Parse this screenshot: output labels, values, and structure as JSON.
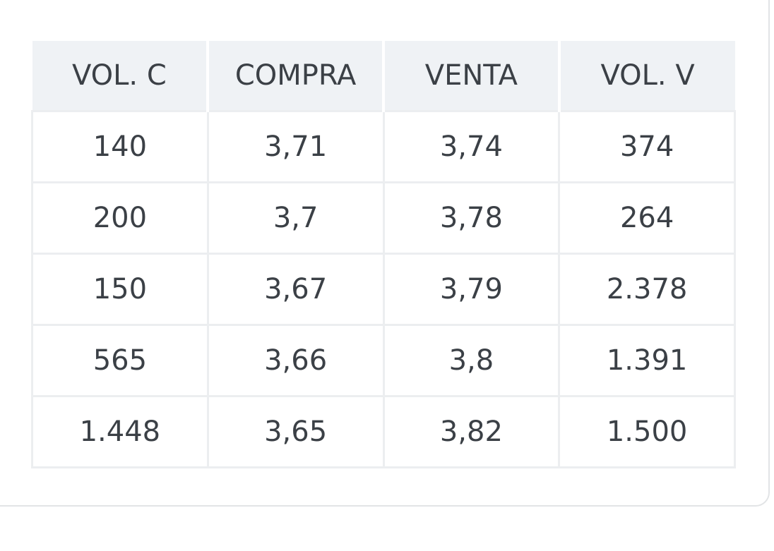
{
  "table": {
    "header": [
      "VOL. C",
      "COMPRA",
      "VENTA",
      "VOL. V"
    ],
    "rows": [
      [
        "140",
        "3,71",
        "3,74",
        "374"
      ],
      [
        "200",
        "3,7",
        "3,78",
        "264"
      ],
      [
        "150",
        "3,67",
        "3,79",
        "2.378"
      ],
      [
        "565",
        "3,66",
        "3,8",
        "1.391"
      ],
      [
        "1.448",
        "3,65",
        "3,82",
        "1.500"
      ]
    ]
  }
}
